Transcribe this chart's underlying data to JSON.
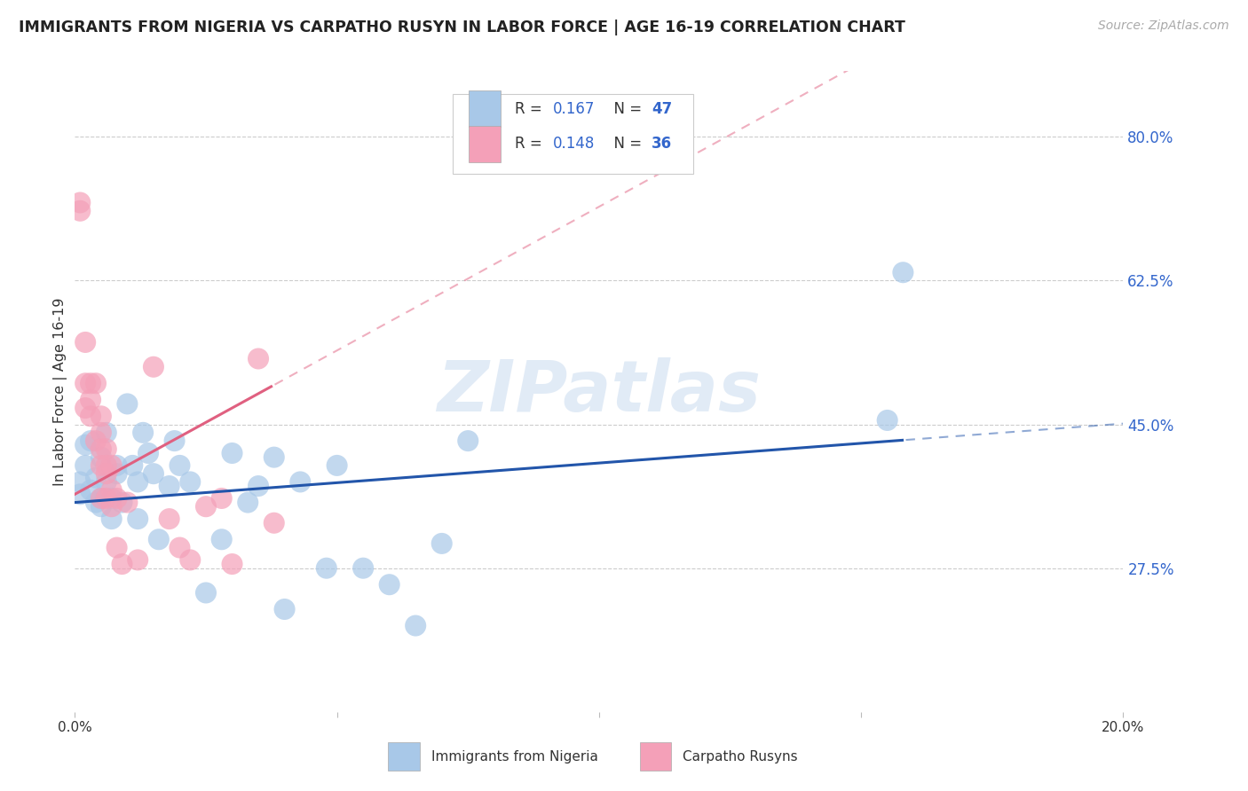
{
  "title": "IMMIGRANTS FROM NIGERIA VS CARPATHO RUSYN IN LABOR FORCE | AGE 16-19 CORRELATION CHART",
  "source": "Source: ZipAtlas.com",
  "ylabel": "In Labor Force | Age 16-19",
  "xlim": [
    0.0,
    0.2
  ],
  "ylim": [
    0.1,
    0.88
  ],
  "yticks": [
    0.275,
    0.45,
    0.625,
    0.8
  ],
  "ytick_labels": [
    "27.5%",
    "45.0%",
    "62.5%",
    "80.0%"
  ],
  "xticks": [
    0.0,
    0.05,
    0.1,
    0.15,
    0.2
  ],
  "xtick_labels": [
    "0.0%",
    "",
    "",
    "",
    "20.0%"
  ],
  "watermark": "ZIPatlas",
  "blue_color": "#a8c8e8",
  "pink_color": "#f4a0b8",
  "blue_line_color": "#2255aa",
  "pink_line_color": "#e06080",
  "R_blue": 0.167,
  "N_blue": 47,
  "R_pink": 0.148,
  "N_pink": 36,
  "nigeria_x": [
    0.001,
    0.001,
    0.002,
    0.002,
    0.003,
    0.003,
    0.004,
    0.004,
    0.005,
    0.005,
    0.005,
    0.006,
    0.006,
    0.007,
    0.007,
    0.008,
    0.008,
    0.009,
    0.01,
    0.011,
    0.012,
    0.012,
    0.013,
    0.014,
    0.015,
    0.016,
    0.018,
    0.019,
    0.02,
    0.022,
    0.025,
    0.028,
    0.03,
    0.033,
    0.035,
    0.038,
    0.04,
    0.043,
    0.048,
    0.05,
    0.055,
    0.06,
    0.065,
    0.07,
    0.075,
    0.155,
    0.158
  ],
  "nigeria_y": [
    0.365,
    0.38,
    0.4,
    0.425,
    0.37,
    0.43,
    0.355,
    0.385,
    0.36,
    0.41,
    0.35,
    0.38,
    0.44,
    0.36,
    0.335,
    0.4,
    0.39,
    0.355,
    0.475,
    0.4,
    0.335,
    0.38,
    0.44,
    0.415,
    0.39,
    0.31,
    0.375,
    0.43,
    0.4,
    0.38,
    0.245,
    0.31,
    0.415,
    0.355,
    0.375,
    0.41,
    0.225,
    0.38,
    0.275,
    0.4,
    0.275,
    0.255,
    0.205,
    0.305,
    0.43,
    0.455,
    0.635
  ],
  "carpatho_x": [
    0.001,
    0.001,
    0.002,
    0.002,
    0.002,
    0.003,
    0.003,
    0.003,
    0.004,
    0.004,
    0.005,
    0.005,
    0.005,
    0.005,
    0.005,
    0.006,
    0.006,
    0.006,
    0.006,
    0.007,
    0.007,
    0.007,
    0.008,
    0.008,
    0.009,
    0.01,
    0.012,
    0.015,
    0.018,
    0.02,
    0.022,
    0.025,
    0.028,
    0.03,
    0.035,
    0.038
  ],
  "carpatho_y": [
    0.72,
    0.71,
    0.55,
    0.5,
    0.47,
    0.5,
    0.48,
    0.46,
    0.5,
    0.43,
    0.46,
    0.44,
    0.42,
    0.4,
    0.36,
    0.42,
    0.4,
    0.39,
    0.36,
    0.4,
    0.37,
    0.35,
    0.36,
    0.3,
    0.28,
    0.355,
    0.285,
    0.52,
    0.335,
    0.3,
    0.285,
    0.35,
    0.36,
    0.28,
    0.53,
    0.33
  ],
  "nigeria_size": 300,
  "carpatho_size": 300,
  "background_color": "#ffffff",
  "grid_color": "#dddddd",
  "blue_intercept": 0.355,
  "blue_slope": 0.48,
  "pink_intercept": 0.365,
  "pink_slope": 3.5
}
